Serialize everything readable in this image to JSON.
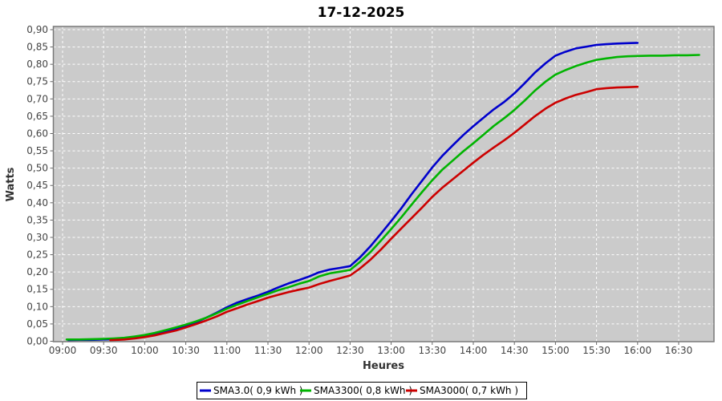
{
  "title": "17-12-2025",
  "chart_data": {
    "type": "line",
    "title": "17-12-2025",
    "xlabel": "Heures",
    "ylabel": "Watts",
    "x_tick_labels": [
      "09:00",
      "09:30",
      "10:00",
      "10:30",
      "11:00",
      "11:30",
      "12:00",
      "12:30",
      "13:00",
      "13:30",
      "14:00",
      "14:30",
      "15:00",
      "15:30",
      "16:00",
      "16:30"
    ],
    "x_tick_hours": [
      9,
      9.5,
      10,
      10.5,
      11,
      11.5,
      12,
      12.5,
      13,
      13.5,
      14,
      14.5,
      15,
      15.5,
      16,
      16.5
    ],
    "y_tick_labels": [
      "0,00",
      "0,05",
      "0,10",
      "0,15",
      "0,20",
      "0,25",
      "0,30",
      "0,35",
      "0,40",
      "0,45",
      "0,50",
      "0,55",
      "0,60",
      "0,65",
      "0,70",
      "0,75",
      "0,80",
      "0,85",
      "0,90"
    ],
    "y_tick_values": [
      0,
      0.05,
      0.1,
      0.15,
      0.2,
      0.25,
      0.3,
      0.35,
      0.4,
      0.45,
      0.5,
      0.55,
      0.6,
      0.65,
      0.7,
      0.75,
      0.8,
      0.85,
      0.9
    ],
    "ylim": [
      0,
      0.9
    ],
    "xlim_hours": [
      8.89,
      16.95
    ],
    "grid": {
      "color": "#ffffff",
      "style": "dashed",
      "on": true
    },
    "plot_background": "#cbcbcb",
    "plot_border": "#787878",
    "legend_position": "bottom-center",
    "series": [
      {
        "name": "SMA3.0( 0,9 kWh )",
        "color": "#0000cc",
        "points": [
          [
            9.07,
            0.003
          ],
          [
            9.2,
            0.004
          ],
          [
            9.35,
            0.004
          ],
          [
            9.5,
            0.005
          ],
          [
            9.62,
            0.006
          ],
          [
            9.75,
            0.008
          ],
          [
            9.88,
            0.01
          ],
          [
            10.0,
            0.013
          ],
          [
            10.12,
            0.019
          ],
          [
            10.25,
            0.027
          ],
          [
            10.38,
            0.035
          ],
          [
            10.5,
            0.044
          ],
          [
            10.62,
            0.054
          ],
          [
            10.75,
            0.068
          ],
          [
            10.88,
            0.083
          ],
          [
            11.0,
            0.098
          ],
          [
            11.12,
            0.111
          ],
          [
            11.25,
            0.122
          ],
          [
            11.38,
            0.132
          ],
          [
            11.5,
            0.143
          ],
          [
            11.62,
            0.155
          ],
          [
            11.75,
            0.167
          ],
          [
            11.88,
            0.177
          ],
          [
            12.0,
            0.187
          ],
          [
            12.12,
            0.199
          ],
          [
            12.25,
            0.207
          ],
          [
            12.38,
            0.212
          ],
          [
            12.5,
            0.217
          ],
          [
            12.62,
            0.242
          ],
          [
            12.75,
            0.275
          ],
          [
            12.88,
            0.312
          ],
          [
            13.0,
            0.347
          ],
          [
            13.12,
            0.383
          ],
          [
            13.25,
            0.425
          ],
          [
            13.38,
            0.465
          ],
          [
            13.5,
            0.502
          ],
          [
            13.62,
            0.535
          ],
          [
            13.75,
            0.566
          ],
          [
            13.88,
            0.596
          ],
          [
            14.0,
            0.621
          ],
          [
            14.12,
            0.645
          ],
          [
            14.25,
            0.67
          ],
          [
            14.38,
            0.692
          ],
          [
            14.5,
            0.716
          ],
          [
            14.62,
            0.744
          ],
          [
            14.75,
            0.776
          ],
          [
            14.88,
            0.803
          ],
          [
            15.0,
            0.825
          ],
          [
            15.12,
            0.836
          ],
          [
            15.25,
            0.846
          ],
          [
            15.38,
            0.851
          ],
          [
            15.5,
            0.856
          ],
          [
            15.62,
            0.858
          ],
          [
            15.75,
            0.86
          ],
          [
            15.88,
            0.861
          ],
          [
            16.0,
            0.862
          ]
        ]
      },
      {
        "name": "SMA3300( 0,8 kWh )",
        "color": "#00b400",
        "points": [
          [
            9.05,
            0.005
          ],
          [
            9.2,
            0.005
          ],
          [
            9.35,
            0.006
          ],
          [
            9.5,
            0.007
          ],
          [
            9.62,
            0.008
          ],
          [
            9.75,
            0.01
          ],
          [
            9.88,
            0.014
          ],
          [
            10.0,
            0.018
          ],
          [
            10.12,
            0.024
          ],
          [
            10.25,
            0.032
          ],
          [
            10.38,
            0.04
          ],
          [
            10.5,
            0.048
          ],
          [
            10.62,
            0.057
          ],
          [
            10.75,
            0.068
          ],
          [
            10.88,
            0.081
          ],
          [
            11.0,
            0.094
          ],
          [
            11.12,
            0.105
          ],
          [
            11.25,
            0.116
          ],
          [
            11.38,
            0.127
          ],
          [
            11.5,
            0.137
          ],
          [
            11.62,
            0.147
          ],
          [
            11.75,
            0.156
          ],
          [
            11.88,
            0.166
          ],
          [
            12.0,
            0.174
          ],
          [
            12.12,
            0.187
          ],
          [
            12.25,
            0.196
          ],
          [
            12.38,
            0.201
          ],
          [
            12.5,
            0.206
          ],
          [
            12.62,
            0.229
          ],
          [
            12.75,
            0.258
          ],
          [
            12.88,
            0.292
          ],
          [
            13.0,
            0.324
          ],
          [
            13.12,
            0.357
          ],
          [
            13.25,
            0.395
          ],
          [
            13.38,
            0.432
          ],
          [
            13.5,
            0.465
          ],
          [
            13.62,
            0.495
          ],
          [
            13.75,
            0.522
          ],
          [
            13.88,
            0.549
          ],
          [
            14.0,
            0.572
          ],
          [
            14.12,
            0.596
          ],
          [
            14.25,
            0.622
          ],
          [
            14.38,
            0.645
          ],
          [
            14.5,
            0.668
          ],
          [
            14.62,
            0.694
          ],
          [
            14.75,
            0.724
          ],
          [
            14.88,
            0.75
          ],
          [
            15.0,
            0.77
          ],
          [
            15.12,
            0.783
          ],
          [
            15.25,
            0.795
          ],
          [
            15.38,
            0.805
          ],
          [
            15.5,
            0.813
          ],
          [
            15.62,
            0.817
          ],
          [
            15.75,
            0.821
          ],
          [
            15.88,
            0.823
          ],
          [
            16.0,
            0.824
          ],
          [
            16.15,
            0.825
          ],
          [
            16.3,
            0.825
          ],
          [
            16.45,
            0.826
          ],
          [
            16.6,
            0.826
          ],
          [
            16.75,
            0.827
          ]
        ]
      },
      {
        "name": "SMA3000( 0,7 kWh )",
        "color": "#cc0000",
        "points": [
          [
            9.58,
            0.003
          ],
          [
            9.75,
            0.005
          ],
          [
            9.88,
            0.008
          ],
          [
            10.0,
            0.012
          ],
          [
            10.12,
            0.017
          ],
          [
            10.25,
            0.024
          ],
          [
            10.38,
            0.031
          ],
          [
            10.5,
            0.04
          ],
          [
            10.62,
            0.049
          ],
          [
            10.75,
            0.06
          ],
          [
            10.88,
            0.072
          ],
          [
            11.0,
            0.085
          ],
          [
            11.12,
            0.095
          ],
          [
            11.25,
            0.106
          ],
          [
            11.38,
            0.116
          ],
          [
            11.5,
            0.126
          ],
          [
            11.62,
            0.134
          ],
          [
            11.75,
            0.142
          ],
          [
            11.88,
            0.149
          ],
          [
            12.0,
            0.155
          ],
          [
            12.12,
            0.165
          ],
          [
            12.25,
            0.174
          ],
          [
            12.38,
            0.182
          ],
          [
            12.5,
            0.19
          ],
          [
            12.62,
            0.21
          ],
          [
            12.75,
            0.236
          ],
          [
            12.88,
            0.266
          ],
          [
            13.0,
            0.296
          ],
          [
            13.12,
            0.325
          ],
          [
            13.25,
            0.356
          ],
          [
            13.38,
            0.387
          ],
          [
            13.5,
            0.417
          ],
          [
            13.62,
            0.443
          ],
          [
            13.75,
            0.468
          ],
          [
            13.88,
            0.493
          ],
          [
            14.0,
            0.516
          ],
          [
            14.12,
            0.538
          ],
          [
            14.25,
            0.56
          ],
          [
            14.38,
            0.581
          ],
          [
            14.5,
            0.602
          ],
          [
            14.62,
            0.625
          ],
          [
            14.75,
            0.65
          ],
          [
            14.88,
            0.672
          ],
          [
            15.0,
            0.689
          ],
          [
            15.12,
            0.701
          ],
          [
            15.25,
            0.712
          ],
          [
            15.38,
            0.72
          ],
          [
            15.5,
            0.728
          ],
          [
            15.62,
            0.731
          ],
          [
            15.75,
            0.733
          ],
          [
            15.88,
            0.734
          ],
          [
            16.0,
            0.735
          ]
        ]
      }
    ]
  }
}
